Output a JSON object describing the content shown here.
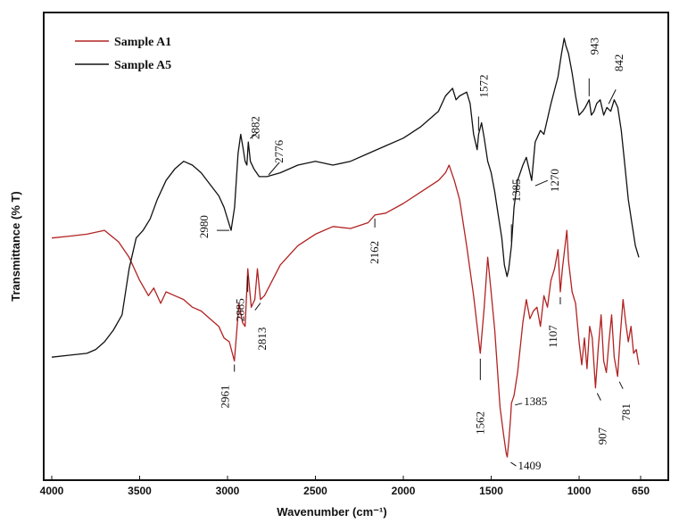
{
  "chart_data": {
    "type": "line",
    "xlabel": "Wavenumber (cm⁻¹)",
    "ylabel": "Transmittance (% T)",
    "xlim": [
      4000,
      650
    ],
    "x_ticks": [
      "4000",
      "3500",
      "3000",
      "2500",
      "2000",
      "1500",
      "1000",
      "650"
    ],
    "x_tick_values": [
      4000,
      3500,
      3000,
      2500,
      2000,
      1500,
      1000,
      650
    ],
    "legend_position": "top-left",
    "series": [
      {
        "name": "Sample A1",
        "color": "#b22222",
        "points": [
          [
            4000,
            60
          ],
          [
            3900,
            60.5
          ],
          [
            3800,
            61
          ],
          [
            3700,
            62
          ],
          [
            3620,
            59
          ],
          [
            3560,
            55
          ],
          [
            3500,
            49
          ],
          [
            3450,
            45
          ],
          [
            3420,
            47
          ],
          [
            3380,
            43
          ],
          [
            3350,
            46
          ],
          [
            3300,
            45
          ],
          [
            3250,
            44
          ],
          [
            3200,
            42
          ],
          [
            3150,
            41
          ],
          [
            3100,
            39
          ],
          [
            3050,
            37
          ],
          [
            3020,
            34
          ],
          [
            2990,
            33
          ],
          [
            2961,
            28
          ],
          [
            2935,
            43
          ],
          [
            2915,
            38
          ],
          [
            2900,
            37
          ],
          [
            2885,
            52
          ],
          [
            2865,
            42
          ],
          [
            2845,
            44
          ],
          [
            2830,
            52
          ],
          [
            2813,
            44
          ],
          [
            2790,
            45
          ],
          [
            2700,
            53
          ],
          [
            2600,
            58
          ],
          [
            2500,
            61
          ],
          [
            2400,
            63
          ],
          [
            2300,
            62.5
          ],
          [
            2200,
            64
          ],
          [
            2162,
            66
          ],
          [
            2100,
            66.5
          ],
          [
            2000,
            69
          ],
          [
            1900,
            72
          ],
          [
            1800,
            75
          ],
          [
            1760,
            77
          ],
          [
            1740,
            79
          ],
          [
            1710,
            75
          ],
          [
            1680,
            70
          ],
          [
            1640,
            58
          ],
          [
            1600,
            45
          ],
          [
            1562,
            30
          ],
          [
            1540,
            42
          ],
          [
            1520,
            55
          ],
          [
            1505,
            48
          ],
          [
            1480,
            36
          ],
          [
            1450,
            16
          ],
          [
            1430,
            9
          ],
          [
            1415,
            4
          ],
          [
            1409,
            3
          ],
          [
            1400,
            7
          ],
          [
            1390,
            13
          ],
          [
            1385,
            17
          ],
          [
            1370,
            19
          ],
          [
            1350,
            25
          ],
          [
            1320,
            38
          ],
          [
            1300,
            44
          ],
          [
            1280,
            39
          ],
          [
            1260,
            41
          ],
          [
            1240,
            42
          ],
          [
            1220,
            37
          ],
          [
            1200,
            45
          ],
          [
            1180,
            42
          ],
          [
            1160,
            49
          ],
          [
            1140,
            52
          ],
          [
            1120,
            57
          ],
          [
            1107,
            46
          ],
          [
            1095,
            52
          ],
          [
            1080,
            58
          ],
          [
            1070,
            62
          ],
          [
            1060,
            54
          ],
          [
            1040,
            46
          ],
          [
            1020,
            43
          ],
          [
            1000,
            33
          ],
          [
            985,
            27
          ],
          [
            970,
            34
          ],
          [
            955,
            26
          ],
          [
            940,
            37
          ],
          [
            925,
            34
          ],
          [
            907,
            21
          ],
          [
            890,
            32
          ],
          [
            875,
            40
          ],
          [
            860,
            28
          ],
          [
            845,
            25
          ],
          [
            830,
            33
          ],
          [
            815,
            40
          ],
          [
            800,
            29
          ],
          [
            781,
            24
          ],
          [
            765,
            35
          ],
          [
            750,
            44
          ],
          [
            735,
            38
          ],
          [
            720,
            33
          ],
          [
            705,
            37
          ],
          [
            690,
            30
          ],
          [
            675,
            31
          ],
          [
            660,
            27
          ]
        ]
      },
      {
        "name": "Sample A5",
        "color": "#111111",
        "points": [
          [
            4000,
            29
          ],
          [
            3900,
            29.5
          ],
          [
            3800,
            30
          ],
          [
            3750,
            31
          ],
          [
            3700,
            33
          ],
          [
            3650,
            36
          ],
          [
            3600,
            40
          ],
          [
            3560,
            52
          ],
          [
            3520,
            60
          ],
          [
            3480,
            62
          ],
          [
            3440,
            65
          ],
          [
            3400,
            70
          ],
          [
            3350,
            75
          ],
          [
            3300,
            78
          ],
          [
            3250,
            80
          ],
          [
            3200,
            79
          ],
          [
            3150,
            77
          ],
          [
            3100,
            74
          ],
          [
            3050,
            71
          ],
          [
            3020,
            68
          ],
          [
            3000,
            65
          ],
          [
            2980,
            62
          ],
          [
            2960,
            68
          ],
          [
            2940,
            82
          ],
          [
            2925,
            87
          ],
          [
            2910,
            83
          ],
          [
            2900,
            80
          ],
          [
            2890,
            79
          ],
          [
            2882,
            85
          ],
          [
            2870,
            80
          ],
          [
            2850,
            78
          ],
          [
            2820,
            76
          ],
          [
            2776,
            76
          ],
          [
            2700,
            77
          ],
          [
            2600,
            79
          ],
          [
            2500,
            80
          ],
          [
            2400,
            79
          ],
          [
            2300,
            80
          ],
          [
            2200,
            82
          ],
          [
            2100,
            84
          ],
          [
            2000,
            86
          ],
          [
            1900,
            89
          ],
          [
            1800,
            93
          ],
          [
            1760,
            97
          ],
          [
            1720,
            99
          ],
          [
            1700,
            96
          ],
          [
            1680,
            97
          ],
          [
            1640,
            98
          ],
          [
            1620,
            95
          ],
          [
            1600,
            87
          ],
          [
            1580,
            83
          ],
          [
            1572,
            87
          ],
          [
            1555,
            90
          ],
          [
            1540,
            86
          ],
          [
            1520,
            80
          ],
          [
            1500,
            77
          ],
          [
            1480,
            72
          ],
          [
            1460,
            66
          ],
          [
            1440,
            60
          ],
          [
            1425,
            53
          ],
          [
            1410,
            50
          ],
          [
            1400,
            52
          ],
          [
            1385,
            58
          ],
          [
            1370,
            68
          ],
          [
            1350,
            75
          ],
          [
            1320,
            79
          ],
          [
            1300,
            81
          ],
          [
            1270,
            75
          ],
          [
            1250,
            85
          ],
          [
            1220,
            88
          ],
          [
            1200,
            87
          ],
          [
            1160,
            95
          ],
          [
            1120,
            102
          ],
          [
            1100,
            108
          ],
          [
            1085,
            112
          ],
          [
            1075,
            110
          ],
          [
            1060,
            108
          ],
          [
            1040,
            103
          ],
          [
            1020,
            97
          ],
          [
            1000,
            92
          ],
          [
            980,
            93
          ],
          [
            965,
            94
          ],
          [
            943,
            96
          ],
          [
            930,
            92
          ],
          [
            915,
            93
          ],
          [
            900,
            95
          ],
          [
            880,
            96
          ],
          [
            860,
            92
          ],
          [
            842,
            94
          ],
          [
            820,
            93
          ],
          [
            800,
            96
          ],
          [
            780,
            94
          ],
          [
            760,
            88
          ],
          [
            740,
            79
          ],
          [
            720,
            70
          ],
          [
            700,
            64
          ],
          [
            680,
            58
          ],
          [
            660,
            55
          ]
        ]
      }
    ],
    "annotations": [
      {
        "label": "2980",
        "series": "Sample A5",
        "x": 2980
      },
      {
        "label": "2882",
        "series": "Sample A5",
        "x": 2882
      },
      {
        "label": "2776",
        "series": "Sample A5",
        "x": 2776
      },
      {
        "label": "1572",
        "series": "Sample A5",
        "x": 1572
      },
      {
        "label": "1385",
        "series": "Sample A5",
        "x": 1385
      },
      {
        "label": "1270",
        "series": "Sample A5",
        "x": 1270
      },
      {
        "label": "943",
        "series": "Sample A5",
        "x": 943
      },
      {
        "label": "842",
        "series": "Sample A5",
        "x": 842
      },
      {
        "label": "2961",
        "series": "Sample A1",
        "x": 2961
      },
      {
        "label": "2885",
        "series": "Sample A1",
        "x": 2885
      },
      {
        "label": "2813",
        "series": "Sample A1",
        "x": 2813
      },
      {
        "label": "2162",
        "series": "Sample A1",
        "x": 2162
      },
      {
        "label": "1562",
        "series": "Sample A1",
        "x": 1562
      },
      {
        "label": "1385",
        "series": "Sample A1",
        "x": 1385
      },
      {
        "label": "1409",
        "series": "Sample A1",
        "x": 1409
      },
      {
        "label": "1107",
        "series": "Sample A1",
        "x": 1107
      },
      {
        "label": "907",
        "series": "Sample A1",
        "x": 907
      },
      {
        "label": "781",
        "series": "Sample A1",
        "x": 781
      }
    ]
  }
}
